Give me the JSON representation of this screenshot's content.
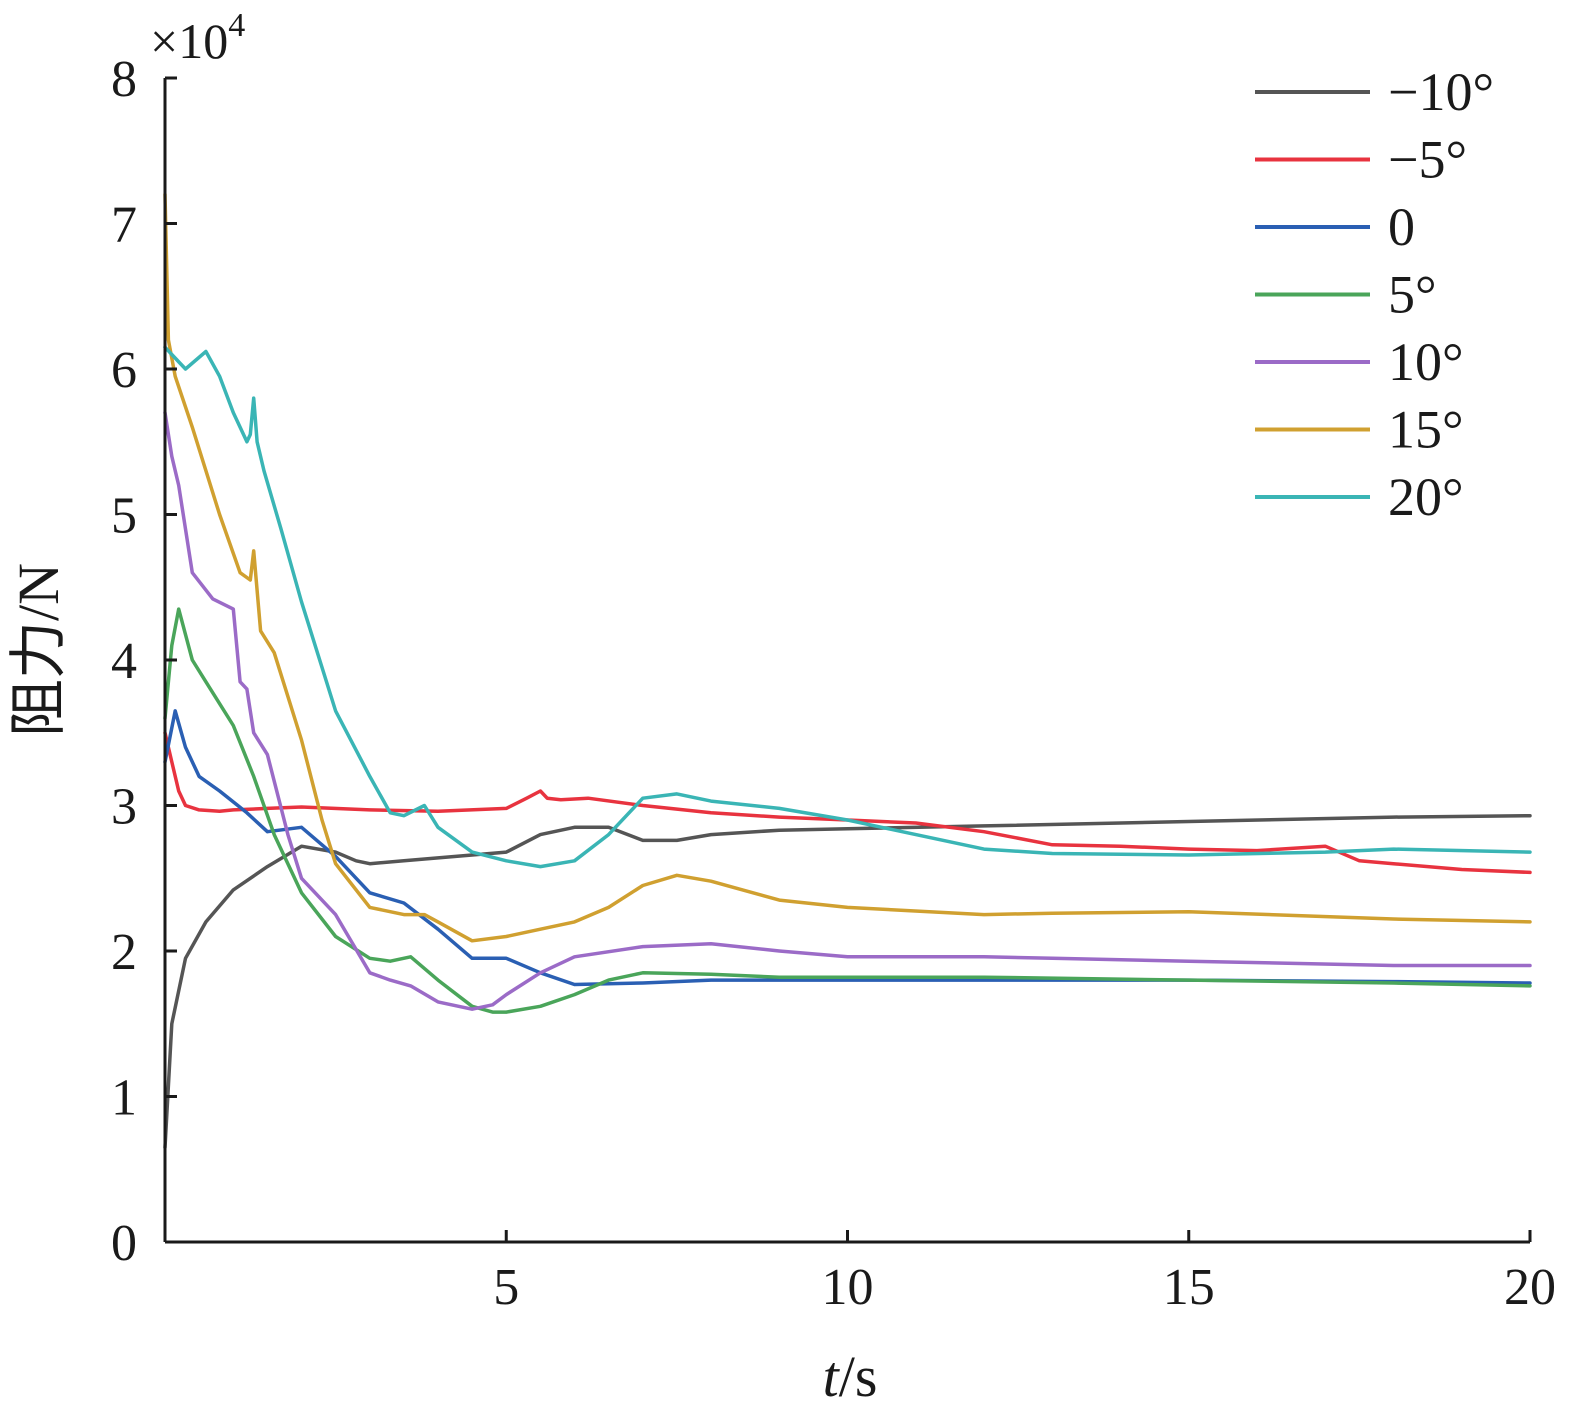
{
  "chart_data": {
    "type": "line",
    "xlabel_italic": "t",
    "xlabel_rest": "/s",
    "ylabel": "阻力/N",
    "y_multiplier": "×10",
    "y_multiplier_exp": "4",
    "xlim": [
      0,
      20
    ],
    "ylim": [
      0,
      8
    ],
    "xticks": [
      5,
      10,
      15,
      20
    ],
    "yticks": [
      0,
      1,
      2,
      3,
      4,
      5,
      6,
      7,
      8
    ],
    "grid": false,
    "legend_position": "top-right",
    "series": [
      {
        "name": "−10°",
        "color": "#555555",
        "x": [
          0,
          0.1,
          0.3,
          0.6,
          1.0,
          1.5,
          2.0,
          2.5,
          2.8,
          3.0,
          3.5,
          4.0,
          5.0,
          5.5,
          6.0,
          6.5,
          7.0,
          7.5,
          8.0,
          9.0,
          10.0,
          12.0,
          15.0,
          18.0,
          20.0
        ],
        "y": [
          0.65,
          1.5,
          1.95,
          2.2,
          2.42,
          2.58,
          2.72,
          2.68,
          2.62,
          2.6,
          2.62,
          2.64,
          2.68,
          2.8,
          2.85,
          2.85,
          2.76,
          2.76,
          2.8,
          2.83,
          2.84,
          2.86,
          2.89,
          2.92,
          2.93
        ]
      },
      {
        "name": "−5°",
        "color": "#e8333f",
        "x": [
          0,
          0.1,
          0.2,
          0.3,
          0.5,
          0.8,
          1.0,
          1.5,
          2.0,
          3.0,
          4.0,
          5.0,
          5.3,
          5.5,
          5.6,
          5.8,
          6.2,
          7.0,
          8.0,
          9.0,
          10.0,
          11.0,
          12.0,
          13.0,
          14.0,
          15.0,
          16.0,
          17.0,
          17.5,
          18.0,
          19.0,
          20.0
        ],
        "y": [
          3.5,
          3.3,
          3.1,
          3.0,
          2.97,
          2.96,
          2.97,
          2.98,
          2.99,
          2.97,
          2.96,
          2.98,
          3.05,
          3.1,
          3.05,
          3.04,
          3.05,
          3.0,
          2.95,
          2.92,
          2.9,
          2.88,
          2.82,
          2.73,
          2.72,
          2.7,
          2.69,
          2.72,
          2.62,
          2.6,
          2.56,
          2.54
        ]
      },
      {
        "name": "0",
        "color": "#2a5fb3",
        "x": [
          0,
          0.15,
          0.3,
          0.5,
          0.8,
          1.2,
          1.5,
          2.0,
          2.5,
          3.0,
          3.5,
          4.0,
          4.5,
          5.0,
          5.5,
          6.0,
          7.0,
          8.0,
          9.0,
          10.0,
          12.0,
          15.0,
          18.0,
          20.0
        ],
        "y": [
          3.3,
          3.65,
          3.4,
          3.2,
          3.1,
          2.95,
          2.82,
          2.85,
          2.65,
          2.4,
          2.33,
          2.15,
          1.95,
          1.95,
          1.85,
          1.77,
          1.78,
          1.8,
          1.8,
          1.8,
          1.8,
          1.8,
          1.79,
          1.78
        ]
      },
      {
        "name": "5°",
        "color": "#4aa55a",
        "x": [
          0,
          0.1,
          0.2,
          0.4,
          0.6,
          1.0,
          1.3,
          1.6,
          2.0,
          2.5,
          3.0,
          3.3,
          3.6,
          4.0,
          4.5,
          4.8,
          5.0,
          5.5,
          6.0,
          6.5,
          7.0,
          8.0,
          9.0,
          10.0,
          12.0,
          15.0,
          18.0,
          20.0
        ],
        "y": [
          3.6,
          4.1,
          4.35,
          4.0,
          3.85,
          3.55,
          3.2,
          2.8,
          2.4,
          2.1,
          1.95,
          1.93,
          1.96,
          1.8,
          1.62,
          1.58,
          1.58,
          1.62,
          1.7,
          1.8,
          1.85,
          1.84,
          1.82,
          1.82,
          1.82,
          1.8,
          1.78,
          1.76
        ]
      },
      {
        "name": "10°",
        "color": "#9b6bc7",
        "x": [
          0,
          0.1,
          0.2,
          0.4,
          0.7,
          1.0,
          1.1,
          1.2,
          1.3,
          1.5,
          1.8,
          2.0,
          2.5,
          3.0,
          3.3,
          3.6,
          4.0,
          4.5,
          4.8,
          5.0,
          5.5,
          6.0,
          7.0,
          8.0,
          9.0,
          10.0,
          12.0,
          13.0,
          15.0,
          18.0,
          20.0
        ],
        "y": [
          5.7,
          5.4,
          5.2,
          4.6,
          4.42,
          4.35,
          3.85,
          3.8,
          3.5,
          3.35,
          2.8,
          2.5,
          2.25,
          1.85,
          1.8,
          1.76,
          1.65,
          1.6,
          1.63,
          1.7,
          1.85,
          1.96,
          2.03,
          2.05,
          2.0,
          1.96,
          1.96,
          1.95,
          1.93,
          1.9,
          1.9
        ]
      },
      {
        "name": "15°",
        "color": "#d0a030",
        "x": [
          0,
          0.05,
          0.15,
          0.4,
          0.8,
          1.1,
          1.25,
          1.3,
          1.4,
          1.6,
          2.0,
          2.3,
          2.5,
          3.0,
          3.5,
          3.8,
          4.0,
          4.5,
          5.0,
          5.5,
          6.0,
          6.5,
          7.0,
          7.5,
          8.0,
          9.0,
          10.0,
          12.0,
          13.0,
          15.0,
          18.0,
          20.0
        ],
        "y": [
          7.2,
          6.2,
          5.95,
          5.6,
          5.0,
          4.6,
          4.55,
          4.75,
          4.2,
          4.05,
          3.45,
          2.9,
          2.6,
          2.3,
          2.25,
          2.25,
          2.2,
          2.07,
          2.1,
          2.15,
          2.2,
          2.3,
          2.45,
          2.52,
          2.48,
          2.35,
          2.3,
          2.25,
          2.26,
          2.27,
          2.22,
          2.2
        ]
      },
      {
        "name": "20°",
        "color": "#3ab5b5",
        "x": [
          0,
          0.1,
          0.3,
          0.6,
          0.8,
          1.0,
          1.2,
          1.25,
          1.3,
          1.35,
          1.45,
          1.7,
          2.0,
          2.5,
          3.0,
          3.3,
          3.5,
          3.8,
          4.0,
          4.5,
          5.0,
          5.5,
          6.0,
          6.5,
          7.0,
          7.5,
          8.0,
          9.0,
          10.0,
          10.5,
          11.0,
          12.0,
          13.0,
          15.0,
          17.0,
          18.0,
          20.0
        ],
        "y": [
          6.15,
          6.1,
          6.0,
          6.12,
          5.95,
          5.7,
          5.5,
          5.55,
          5.8,
          5.5,
          5.3,
          4.9,
          4.4,
          3.65,
          3.2,
          2.95,
          2.93,
          3.0,
          2.85,
          2.68,
          2.62,
          2.58,
          2.62,
          2.8,
          3.05,
          3.08,
          3.03,
          2.98,
          2.9,
          2.85,
          2.8,
          2.7,
          2.67,
          2.66,
          2.68,
          2.7,
          2.68
        ]
      }
    ]
  }
}
